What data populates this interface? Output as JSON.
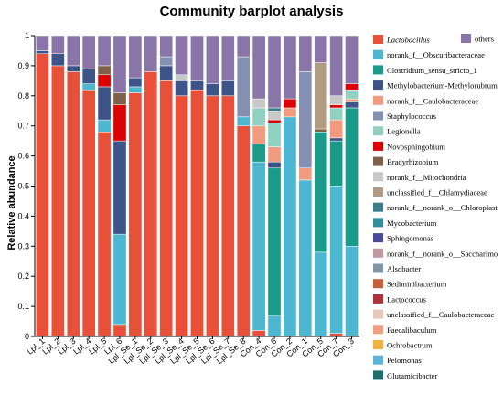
{
  "chart_data": {
    "type": "bar",
    "stacked": true,
    "title": "Community barplot analysis",
    "xlabel": "",
    "ylabel": "Relative abundance",
    "ylim": [
      0,
      1
    ],
    "yticks": [
      "0",
      "0.1",
      "0.2",
      "0.3",
      "0.4",
      "0.5",
      "0.6",
      "0.7",
      "0.8",
      "0.9",
      "1"
    ],
    "grid": false,
    "legend_position": "right",
    "categories": [
      "Lpl_1",
      "Lpl_2",
      "Lpl_3",
      "Lpl_4",
      "Lpl_5",
      "Lpl_6",
      "Lpl_Se_1",
      "Lpl_Se_2",
      "Lpl_Se_3",
      "Lpl_Se_4",
      "Lpl_Se_5",
      "Lpl_Se_6",
      "Lpl_Se_7",
      "Lpl_Se_8",
      "Con_4",
      "Con_6",
      "Con_2",
      "Con_1",
      "Con_5",
      "Con_7",
      "Con_3"
    ],
    "series": [
      {
        "name": "Lactobacillus",
        "color": "#e8503a",
        "values": [
          0.94,
          0.9,
          0.88,
          0.82,
          0.68,
          0.04,
          0.81,
          0.88,
          0.85,
          0.8,
          0.82,
          0.8,
          0.8,
          0.7,
          0.02,
          0.0,
          0.0,
          0.0,
          0.0,
          0.01,
          0.0
        ]
      },
      {
        "name": "norank_f__Obscuribacteraceae",
        "color": "#4db7d1",
        "values": [
          0.0,
          0.0,
          0.0,
          0.02,
          0.04,
          0.3,
          0.02,
          0.0,
          0.0,
          0.0,
          0.0,
          0.0,
          0.0,
          0.03,
          0.56,
          0.07,
          0.73,
          0.52,
          0.28,
          0.49,
          0.3
        ]
      },
      {
        "name": "Clostridium_sensu_stricto_1",
        "color": "#1a9b8a",
        "values": [
          0.0,
          0.0,
          0.0,
          0.0,
          0.0,
          0.0,
          0.0,
          0.0,
          0.0,
          0.0,
          0.0,
          0.0,
          0.0,
          0.0,
          0.06,
          0.49,
          0.0,
          0.0,
          0.4,
          0.15,
          0.46
        ]
      },
      {
        "name": "Methylobacterium-Methylorubrum",
        "color": "#3c5488",
        "values": [
          0.01,
          0.04,
          0.02,
          0.05,
          0.11,
          0.31,
          0.03,
          0.0,
          0.05,
          0.05,
          0.03,
          0.04,
          0.05,
          0.0,
          0.0,
          0.02,
          0.0,
          0.0,
          0.0,
          0.01,
          0.02
        ]
      },
      {
        "name": "norank_f__Caulobacteraceae",
        "color": "#f39b7f",
        "values": [
          0.0,
          0.0,
          0.0,
          0.0,
          0.0,
          0.0,
          0.0,
          0.0,
          0.0,
          0.0,
          0.0,
          0.0,
          0.0,
          0.0,
          0.06,
          0.05,
          0.03,
          0.04,
          0.0,
          0.06,
          0.01
        ]
      },
      {
        "name": "Staphylococcus",
        "color": "#8491b4",
        "values": [
          0.0,
          0.0,
          0.0,
          0.0,
          0.0,
          0.0,
          0.0,
          0.0,
          0.03,
          0.0,
          0.0,
          0.0,
          0.0,
          0.2,
          0.0,
          0.0,
          0.0,
          0.32,
          0.0,
          0.0,
          0.0
        ]
      },
      {
        "name": "Legionella",
        "color": "#91d1c2",
        "values": [
          0.0,
          0.0,
          0.0,
          0.0,
          0.0,
          0.0,
          0.0,
          0.0,
          0.0,
          0.0,
          0.0,
          0.0,
          0.0,
          0.0,
          0.06,
          0.08,
          0.0,
          0.0,
          0.0,
          0.04,
          0.03
        ]
      },
      {
        "name": "Novosphingobium",
        "color": "#dc0000",
        "values": [
          0.0,
          0.0,
          0.0,
          0.0,
          0.04,
          0.12,
          0.0,
          0.0,
          0.0,
          0.0,
          0.0,
          0.0,
          0.0,
          0.0,
          0.0,
          0.01,
          0.03,
          0.0,
          0.0,
          0.01,
          0.02
        ]
      },
      {
        "name": "Bradyrhizobium",
        "color": "#7e6148",
        "values": [
          0.0,
          0.0,
          0.0,
          0.0,
          0.03,
          0.04,
          0.0,
          0.0,
          0.0,
          0.0,
          0.0,
          0.0,
          0.0,
          0.0,
          0.0,
          0.0,
          0.0,
          0.0,
          0.01,
          0.0,
          0.0
        ]
      },
      {
        "name": "norank_f__Mitochondria",
        "color": "#c8c8c8",
        "values": [
          0.0,
          0.0,
          0.0,
          0.0,
          0.0,
          0.0,
          0.0,
          0.0,
          0.0,
          0.02,
          0.0,
          0.0,
          0.0,
          0.0,
          0.03,
          0.03,
          0.0,
          0.0,
          0.0,
          0.03,
          0.0
        ]
      },
      {
        "name": "unclassified_f__Chlamydiaceae",
        "color": "#b09c85",
        "values": [
          0.0,
          0.0,
          0.0,
          0.0,
          0.0,
          0.0,
          0.0,
          0.0,
          0.0,
          0.0,
          0.0,
          0.0,
          0.0,
          0.0,
          0.0,
          0.0,
          0.0,
          0.0,
          0.22,
          0.0,
          0.0
        ]
      },
      {
        "name": "norank_f__norank_o__Chloroplast",
        "color": "#3a7d8c",
        "values": [
          0.0,
          0.0,
          0.0,
          0.0,
          0.0,
          0.0,
          0.0,
          0.0,
          0.0,
          0.0,
          0.0,
          0.0,
          0.0,
          0.0,
          0.0,
          0.01,
          0.0,
          0.0,
          0.0,
          0.0,
          0.0
        ]
      },
      {
        "name": "Mycobacterium",
        "color": "#2f8ea0",
        "values": [
          0.0,
          0.0,
          0.0,
          0.0,
          0.0,
          0.0,
          0.0,
          0.0,
          0.0,
          0.0,
          0.0,
          0.0,
          0.0,
          0.0,
          0.0,
          0.0,
          0.0,
          0.0,
          0.0,
          0.0,
          0.0
        ]
      },
      {
        "name": "Sphingomonas",
        "color": "#4a4a9c",
        "values": [
          0.0,
          0.0,
          0.0,
          0.0,
          0.0,
          0.0,
          0.0,
          0.0,
          0.0,
          0.0,
          0.0,
          0.0,
          0.0,
          0.0,
          0.0,
          0.0,
          0.0,
          0.0,
          0.0,
          0.0,
          0.0
        ]
      },
      {
        "name": "norank_f__norank_o__Saccharimo",
        "color": "#c09aa0",
        "values": [
          0.0,
          0.0,
          0.0,
          0.0,
          0.0,
          0.0,
          0.0,
          0.0,
          0.0,
          0.0,
          0.0,
          0.0,
          0.0,
          0.0,
          0.0,
          0.0,
          0.0,
          0.0,
          0.0,
          0.0,
          0.0
        ]
      },
      {
        "name": "Alsobacter",
        "color": "#7f96a8",
        "values": [
          0.0,
          0.0,
          0.0,
          0.0,
          0.0,
          0.0,
          0.0,
          0.0,
          0.0,
          0.0,
          0.0,
          0.0,
          0.0,
          0.0,
          0.0,
          0.0,
          0.0,
          0.0,
          0.0,
          0.0,
          0.0
        ]
      },
      {
        "name": "Sediminibacterium",
        "color": "#c8603c",
        "values": [
          0.0,
          0.0,
          0.0,
          0.0,
          0.0,
          0.0,
          0.0,
          0.0,
          0.0,
          0.0,
          0.0,
          0.0,
          0.0,
          0.0,
          0.0,
          0.0,
          0.0,
          0.0,
          0.0,
          0.0,
          0.0
        ]
      },
      {
        "name": "Lactococcus",
        "color": "#b2323c",
        "values": [
          0.0,
          0.0,
          0.0,
          0.0,
          0.0,
          0.0,
          0.0,
          0.0,
          0.0,
          0.0,
          0.0,
          0.0,
          0.0,
          0.0,
          0.0,
          0.0,
          0.0,
          0.0,
          0.0,
          0.0,
          0.0
        ]
      },
      {
        "name": "unclassified_f__Caulobacteraceae",
        "color": "#e6c8b4",
        "values": [
          0.0,
          0.0,
          0.0,
          0.0,
          0.0,
          0.0,
          0.0,
          0.0,
          0.0,
          0.0,
          0.0,
          0.0,
          0.0,
          0.0,
          0.0,
          0.0,
          0.0,
          0.0,
          0.0,
          0.0,
          0.0
        ]
      },
      {
        "name": "Faecalibaculum",
        "color": "#f0a080",
        "values": [
          0.0,
          0.0,
          0.0,
          0.0,
          0.0,
          0.0,
          0.0,
          0.0,
          0.0,
          0.0,
          0.0,
          0.0,
          0.0,
          0.0,
          0.0,
          0.0,
          0.0,
          0.0,
          0.0,
          0.0,
          0.0
        ]
      },
      {
        "name": "Ochrobactrum",
        "color": "#f2b23c",
        "values": [
          0.0,
          0.0,
          0.0,
          0.0,
          0.0,
          0.0,
          0.0,
          0.0,
          0.0,
          0.0,
          0.0,
          0.0,
          0.0,
          0.0,
          0.0,
          0.0,
          0.0,
          0.0,
          0.0,
          0.0,
          0.0
        ]
      },
      {
        "name": "Pelomonas",
        "color": "#5ab4dc",
        "values": [
          0.0,
          0.0,
          0.0,
          0.0,
          0.0,
          0.0,
          0.0,
          0.0,
          0.0,
          0.0,
          0.0,
          0.0,
          0.0,
          0.0,
          0.0,
          0.0,
          0.0,
          0.0,
          0.0,
          0.0,
          0.0
        ]
      },
      {
        "name": "Glutamicibacter",
        "color": "#1e6e6e",
        "values": [
          0.0,
          0.0,
          0.0,
          0.0,
          0.0,
          0.0,
          0.0,
          0.0,
          0.0,
          0.0,
          0.0,
          0.0,
          0.0,
          0.0,
          0.0,
          0.0,
          0.0,
          0.0,
          0.0,
          0.0,
          0.0
        ]
      },
      {
        "name": "others",
        "color": "#8a75a8",
        "values": [
          0.05,
          0.06,
          0.1,
          0.11,
          0.1,
          0.19,
          0.14,
          0.12,
          0.07,
          0.13,
          0.15,
          0.16,
          0.15,
          0.07,
          0.21,
          0.24,
          0.21,
          0.12,
          0.09,
          0.2,
          0.16
        ]
      }
    ]
  }
}
